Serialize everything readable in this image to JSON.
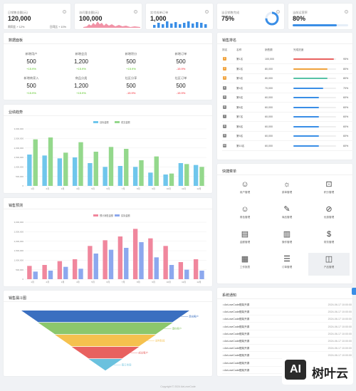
{
  "kpis": [
    {
      "label": "日销售金额(元)",
      "value": "120,000",
      "foot_left": "周同比 + 12%",
      "foot_right": "日同比 + 10%"
    },
    {
      "label": "访问量金额(元)",
      "value": "100,000"
    },
    {
      "label": "实付成单订单",
      "value": "1,000"
    },
    {
      "label": "当日销售完成",
      "value": "75%",
      "percent": 75
    },
    {
      "label": "当前运营率",
      "value": "80%",
      "percent": 80
    }
  ],
  "overview": {
    "title": "数据面板",
    "stats": [
      {
        "label": "新增用户",
        "value": "500",
        "rate": "+15.9%",
        "trend": "up"
      },
      {
        "label": "新增会员",
        "value": "1,200",
        "rate": "+15.9%",
        "trend": "up"
      },
      {
        "label": "新增积分",
        "value": "500",
        "rate": "+15.9%",
        "trend": "up"
      },
      {
        "label": "新增订单",
        "value": "500",
        "rate": "-15.9%",
        "trend": "down"
      },
      {
        "label": "新增商家入",
        "value": "500",
        "rate": "+15.9%",
        "trend": "up"
      },
      {
        "label": "商品分类",
        "value": "1,200",
        "rate": "+15.9%",
        "trend": "up"
      },
      {
        "label": "社区分享",
        "value": "500",
        "rate": "-15.9%",
        "trend": "down"
      },
      {
        "label": "社区订单",
        "value": "500",
        "rate": "-15.9%",
        "trend": "down"
      }
    ]
  },
  "ranking": {
    "title": "销售排名",
    "headers": [
      "排名",
      "名称",
      "销售额",
      "完成进度"
    ],
    "rows": [
      {
        "rank": "1",
        "name": "第1名",
        "amount": "100,000",
        "pct": "95%",
        "fill": 0.95,
        "color": "#e8615f"
      },
      {
        "rank": "2",
        "name": "第2名",
        "amount": "80,000",
        "pct": "80%",
        "fill": 0.8,
        "color": "#f0a23b"
      },
      {
        "rank": "3",
        "name": "第3名",
        "amount": "80,000",
        "pct": "80%",
        "fill": 0.8,
        "color": "#56c2a5"
      },
      {
        "rank": "4",
        "name": "第4名",
        "amount": "70,000",
        "pct": "70%",
        "fill": 0.7,
        "color": "#3a8ee6"
      },
      {
        "rank": "5",
        "name": "第5名",
        "amount": "60,000",
        "pct": "60%",
        "fill": 0.6,
        "color": "#3a8ee6"
      },
      {
        "rank": "6",
        "name": "第6名",
        "amount": "60,000",
        "pct": "60%",
        "fill": 0.6,
        "color": "#3a8ee6"
      },
      {
        "rank": "7",
        "name": "第7名",
        "amount": "60,000",
        "pct": "60%",
        "fill": 0.6,
        "color": "#3a8ee6"
      },
      {
        "rank": "8",
        "name": "第8名",
        "amount": "60,000",
        "pct": "60%",
        "fill": 0.6,
        "color": "#3a8ee6"
      },
      {
        "rank": "9",
        "name": "第9名",
        "amount": "60,000",
        "pct": "60%",
        "fill": 0.6,
        "color": "#3a8ee6"
      },
      {
        "rank": "10",
        "name": "第10名",
        "amount": "60,000",
        "pct": "60%",
        "fill": 0.6,
        "color": "#3a8ee6"
      }
    ]
  },
  "quick": {
    "title": "快捷菜单",
    "items": [
      {
        "label": "用户管理",
        "icon": "user-icon",
        "glyph": "☺"
      },
      {
        "label": "菜单管理",
        "icon": "bulb-icon",
        "glyph": "☼"
      },
      {
        "label": "积分管理",
        "icon": "camera-icon",
        "glyph": "⊡"
      },
      {
        "label": "角色管理",
        "icon": "user-icon",
        "glyph": "☺"
      },
      {
        "label": "商品管理",
        "icon": "pen-icon",
        "glyph": "✎"
      },
      {
        "label": "优惠管理",
        "icon": "coupon-icon",
        "glyph": "⊘"
      },
      {
        "label": "金额管理",
        "icon": "file-icon",
        "glyph": "▤"
      },
      {
        "label": "操作管理",
        "icon": "doc-icon",
        "glyph": "▥"
      },
      {
        "label": "财务管理",
        "icon": "money-bag-icon",
        "glyph": "$"
      },
      {
        "label": "工作报表",
        "icon": "report-icon",
        "glyph": "▦"
      },
      {
        "label": "订单管理",
        "icon": "order-icon",
        "glyph": "☰"
      },
      {
        "label": "产品管理",
        "icon": "box-icon",
        "glyph": "◫"
      }
    ]
  },
  "notices": {
    "title": "系统通知",
    "items": [
      {
        "text": "AeLoveCode框架开源",
        "date": "2024-06-17 10:00:00"
      },
      {
        "text": "AeLoveCode框架开源",
        "date": "2024-06-17 10:00:00"
      },
      {
        "text": "AeLoveCode框架开源",
        "date": "2024-06-17 10:00:00"
      },
      {
        "text": "AeLoveCode框架开源",
        "date": "2024-06-17 10:00:00"
      },
      {
        "text": "AeLoveCode框架开源",
        "date": "2024-06-17 10:00:00"
      },
      {
        "text": "AeLoveCode框架开源",
        "date": "2024-06-17 10:00:00"
      },
      {
        "text": "AeLoveCode框架开源",
        "date": "2024-06-17 10:00:00"
      },
      {
        "text": "AeLoveCode框架开源",
        "date": "2024-06-17 10:00:00"
      },
      {
        "text": "AeLoveCode框架开源",
        "date": "2024-06-17 10:00:00"
      },
      {
        "text": "AeLoveCode框架开源",
        "date": "2024-06-17 10:00:00"
      }
    ]
  },
  "chart_data": [
    {
      "id": "trend",
      "type": "bar",
      "title": "业绩趋势",
      "categories": [
        "1月",
        "2月",
        "3月",
        "4月",
        "5月",
        "6月",
        "7月",
        "8月",
        "9月",
        "10月",
        "11月",
        "12月"
      ],
      "ylim": [
        0,
        3000000
      ],
      "yticks": [
        "0",
        "500,000",
        "1,000,000",
        "1,500,000",
        "2,000,000",
        "2,500,000",
        "3,000,000"
      ],
      "series": [
        {
          "name": "目标金额",
          "color": "#6fc6ec",
          "values": [
            1650000,
            1600000,
            1450000,
            1500000,
            1200000,
            1000000,
            1050000,
            1000000,
            700000,
            600000,
            1200000,
            1100000
          ]
        },
        {
          "name": "成交金额",
          "color": "#94d88c",
          "values": [
            2450000,
            2550000,
            1750000,
            2300000,
            1800000,
            2050000,
            1950000,
            1350000,
            1550000,
            650000,
            1150000,
            1000000
          ]
        }
      ]
    },
    {
      "id": "forecast",
      "type": "bar",
      "title": "销售预测",
      "categories": [
        "1月",
        "2月",
        "3月",
        "4月",
        "5月",
        "6月",
        "7月",
        "8月",
        "9月",
        "10月",
        "11月",
        "12月"
      ],
      "ylim": [
        0,
        3000000
      ],
      "yticks": [
        "0",
        "500,000",
        "1,000,000",
        "1,500,000",
        "2,000,000",
        "2,500,000",
        "3,000,000"
      ],
      "series": [
        {
          "name": "预计销售金额",
          "color": "#f0879d",
          "values": [
            700000,
            750000,
            950000,
            1050000,
            1750000,
            2050000,
            2250000,
            2650000,
            2150000,
            1750000,
            900000,
            1050000
          ]
        },
        {
          "name": "实际金额",
          "color": "#8ca8ee",
          "values": [
            400000,
            450000,
            650000,
            550000,
            1350000,
            1550000,
            1650000,
            1950000,
            1150000,
            750000,
            500000,
            450000
          ]
        }
      ]
    },
    {
      "id": "funnel",
      "type": "funnel",
      "title": "销售漏斗图",
      "stages": [
        {
          "label": "意向客户",
          "color": "#3a6fc0"
        },
        {
          "label": "潜在客户",
          "color": "#8cc76c"
        },
        {
          "label": "谈判阶段",
          "color": "#f5c14e"
        },
        {
          "label": "成交客户",
          "color": "#e8615f"
        },
        {
          "label": "签订合同",
          "color": "#6ac1de"
        }
      ]
    }
  ],
  "footer": "Copyright © 2024 AeLoveCode",
  "brand": {
    "logo_text": "AI",
    "name": "树叶云"
  }
}
